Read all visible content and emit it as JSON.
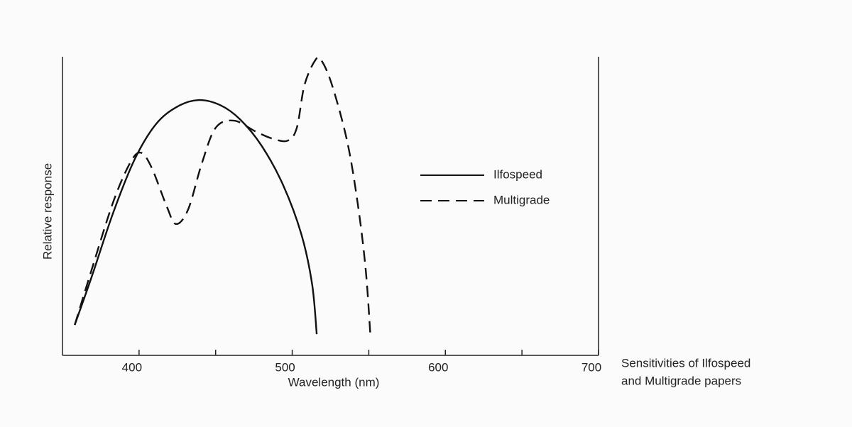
{
  "chart_data": {
    "type": "line",
    "x_label": "Wavelength (nm)",
    "y_label": "Relative response",
    "caption": [
      "Sensitivities of Ilfospeed",
      "and Multigrade papers"
    ],
    "xlim": [
      350,
      700
    ],
    "ylim": [
      0,
      100
    ],
    "xticks": [
      400,
      500,
      600,
      700
    ],
    "xminor_ticks": [
      450,
      550,
      650
    ],
    "legend": "right",
    "series": [
      {
        "name": "Ilfospeed",
        "color": "#111111",
        "dash": "solid",
        "x": [
          358,
          369,
          383,
          397,
          411,
          425,
          439,
          453,
          466,
          480,
          494,
          506,
          513,
          516
        ],
        "values": [
          10.2,
          26.2,
          47.6,
          65.5,
          77.4,
          83.3,
          85.5,
          83.8,
          79.0,
          70.2,
          57.1,
          40.5,
          23.8,
          7.1
        ]
      },
      {
        "name": "Multigrade",
        "color": "#111111",
        "dash": "dashed",
        "x": [
          358,
          369,
          383,
          394,
          401,
          408,
          418,
          424,
          432,
          441,
          450,
          462,
          476,
          487,
          497,
          503,
          508,
          515,
          519,
          526,
          536,
          543,
          548,
          551
        ],
        "values": [
          10.2,
          28.6,
          51.2,
          64.3,
          67.9,
          63.1,
          50.0,
          44.0,
          48.8,
          64.3,
          76.2,
          78.6,
          75.0,
          72.6,
          71.9,
          76.2,
          90.5,
          98.8,
          98.8,
          90.5,
          71.4,
          50.0,
          28.6,
          7.1
        ]
      }
    ]
  }
}
